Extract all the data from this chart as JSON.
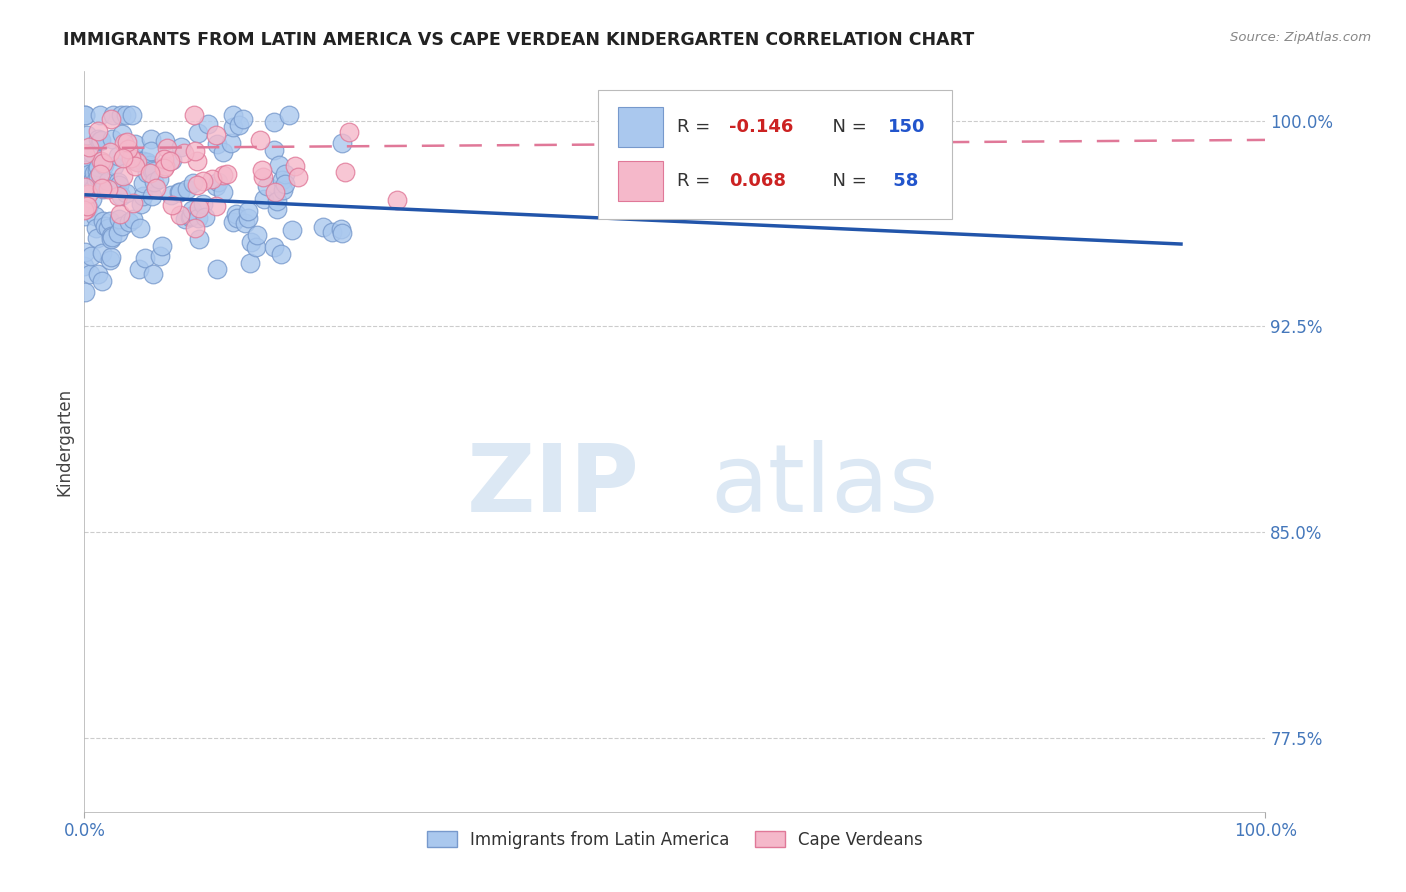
{
  "title": "IMMIGRANTS FROM LATIN AMERICA VS CAPE VERDEAN KINDERGARTEN CORRELATION CHART",
  "source": "Source: ZipAtlas.com",
  "ylabel": "Kindergarten",
  "legend_label_blue": "Immigrants from Latin America",
  "legend_label_pink": "Cape Verdeans",
  "R_blue": -0.146,
  "N_blue": 150,
  "R_pink": 0.068,
  "N_pink": 58,
  "x_min": 0.0,
  "x_max": 1.0,
  "y_min": 0.748,
  "y_max": 1.018,
  "y_ticks": [
    0.775,
    0.85,
    0.925,
    1.0
  ],
  "y_tick_labels": [
    "77.5%",
    "85.0%",
    "92.5%",
    "100.0%"
  ],
  "x_tick_labels": [
    "0.0%",
    "100.0%"
  ],
  "watermark_zip": "ZIP",
  "watermark_atlas": "atlas",
  "background_color": "#ffffff",
  "blue_dot_color": "#aac8ee",
  "blue_dot_edge": "#7799cc",
  "pink_dot_color": "#f5b8ca",
  "pink_dot_edge": "#e07898",
  "blue_line_color": "#2255aa",
  "pink_line_color": "#e07898",
  "grid_color": "#cccccc",
  "title_color": "#222222",
  "axis_label_color": "#4477bb",
  "legend_R_color": "#cc2222",
  "legend_N_color": "#2255cc",
  "blue_line_y0": 0.973,
  "blue_line_y1": 0.955,
  "pink_line_y0": 0.99,
  "pink_line_y1": 0.993
}
